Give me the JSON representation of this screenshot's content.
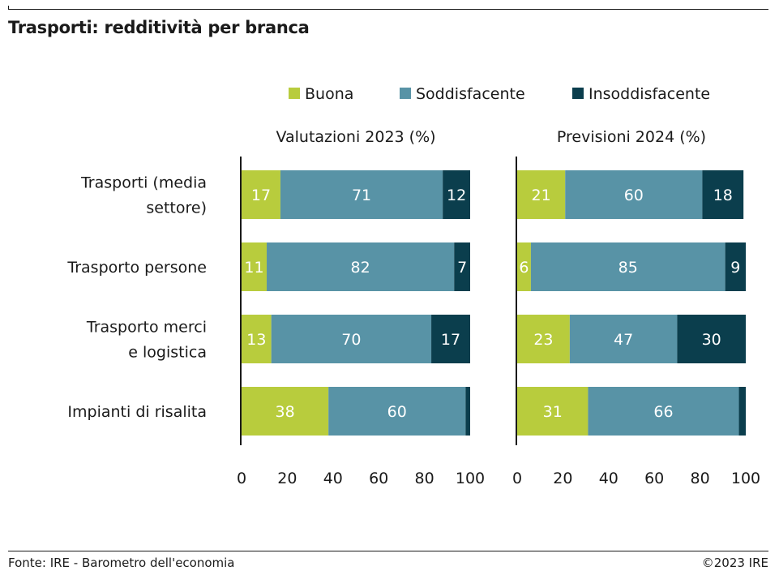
{
  "header": {
    "title": "Trasporti: redditività per branca"
  },
  "footer": {
    "source": "Fonte: IRE - Barometro dell'economia",
    "copyright": "©2023 IRE"
  },
  "chart_data": {
    "type": "bar",
    "orientation": "horizontal",
    "stacked": true,
    "legend_position": "top",
    "categories": [
      [
        "Trasporti (media",
        "settore)"
      ],
      [
        "Trasporto persone"
      ],
      [
        "Trasporto merci",
        "e logistica"
      ],
      [
        "Impianti di risalita"
      ]
    ],
    "series": [
      {
        "name": "Buona",
        "color": "#b8cc3d"
      },
      {
        "name": "Soddisfacente",
        "color": "#5893a6"
      },
      {
        "name": "Insoddisfacente",
        "color": "#0b3e4d"
      }
    ],
    "panels": [
      {
        "title": "Valutazioni 2023 (%)",
        "xlim": [
          0,
          100
        ],
        "xticks": [
          "0",
          "20",
          "40",
          "60",
          "80",
          "100"
        ],
        "values": [
          [
            17,
            71,
            12
          ],
          [
            11,
            82,
            7
          ],
          [
            13,
            70,
            17
          ],
          [
            38,
            60,
            2
          ]
        ],
        "labels": [
          [
            "17",
            "71",
            "12"
          ],
          [
            "11",
            "82",
            "7"
          ],
          [
            "13",
            "70",
            "17"
          ],
          [
            "38",
            "60",
            ""
          ]
        ]
      },
      {
        "title": "Previsioni 2024 (%)",
        "xlim": [
          0,
          100
        ],
        "xticks": [
          "0",
          "20",
          "40",
          "60",
          "80",
          "100"
        ],
        "values": [
          [
            21,
            60,
            18
          ],
          [
            6,
            85,
            9
          ],
          [
            23,
            47,
            30
          ],
          [
            31,
            66,
            3
          ]
        ],
        "labels": [
          [
            "21",
            "60",
            "18"
          ],
          [
            "6",
            "85",
            "9"
          ],
          [
            "23",
            "47",
            "30"
          ],
          [
            "31",
            "66",
            ""
          ]
        ]
      }
    ]
  }
}
